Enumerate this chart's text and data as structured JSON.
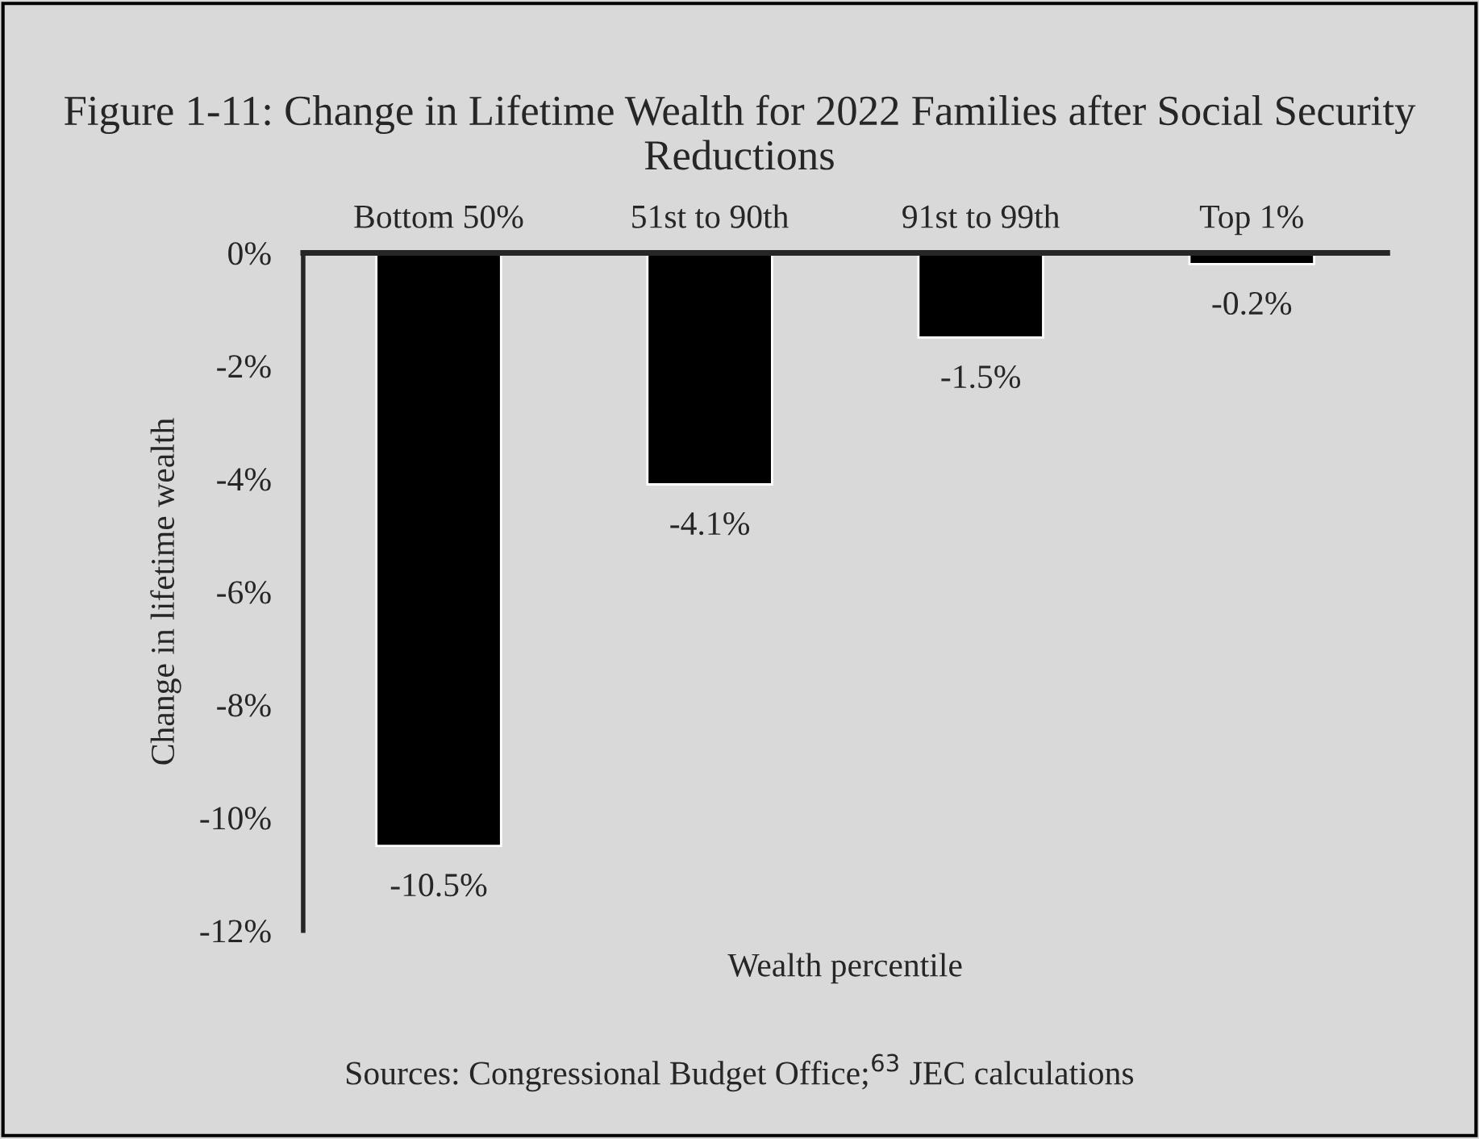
{
  "chart_data": {
    "type": "bar",
    "title": "Figure 1-11: Change in Lifetime Wealth for 2022 Families after Social Security Reductions",
    "xlabel": "Wealth percentile",
    "ylabel": "Change in lifetime wealth",
    "categories": [
      "Bottom 50%",
      "51st to 90th",
      "91st to 99th",
      "Top 1%"
    ],
    "values": [
      -10.5,
      -4.1,
      -1.5,
      -0.2
    ],
    "value_labels": [
      "-10.5%",
      "-4.1%",
      "-1.5%",
      "-0.2%"
    ],
    "color": "#000000",
    "ylim": [
      -12,
      0
    ],
    "yticks": [
      {
        "value": 0,
        "label": "0%"
      },
      {
        "value": -2,
        "label": "-2%"
      },
      {
        "value": -4,
        "label": "-4%"
      },
      {
        "value": -6,
        "label": "-6%"
      },
      {
        "value": -8,
        "label": "-8%"
      },
      {
        "value": -10,
        "label": "-10%"
      },
      {
        "value": -12,
        "label": "-12%"
      }
    ],
    "grid": false,
    "annotations": [
      "Sources: Congressional Budget Office;$^{63}$ JEC calculations"
    ]
  }
}
